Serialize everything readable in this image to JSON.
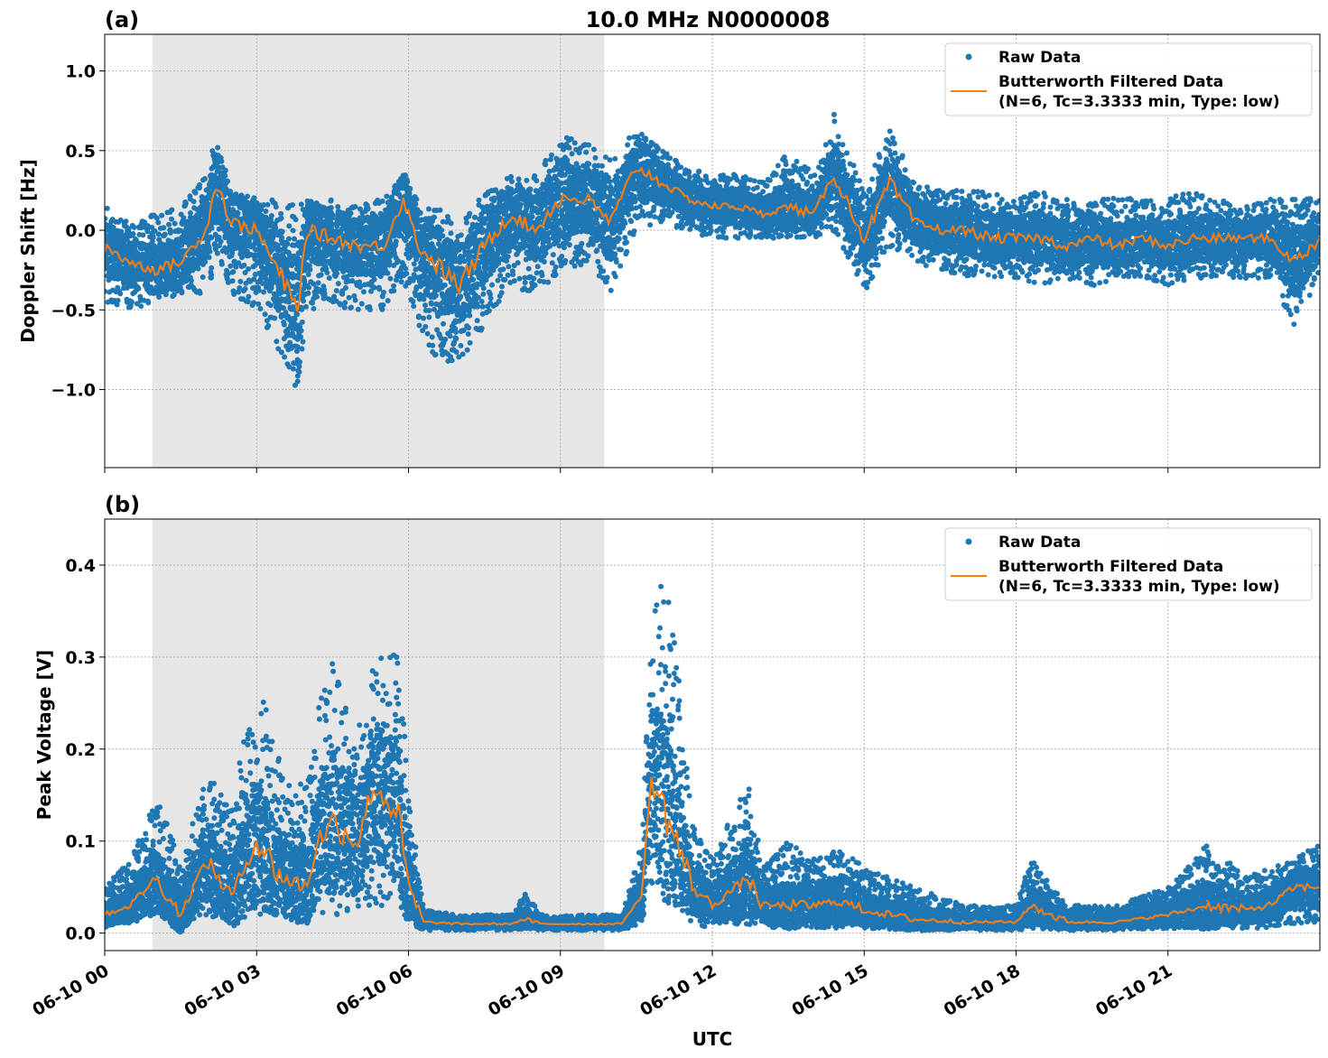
{
  "title": "10.0 MHz N0000008",
  "colors": {
    "raw": "#1f77b4",
    "filtered": "#ff7f0e",
    "shade": "#e6e6e6"
  },
  "chart_data": [
    {
      "type": "scatter+line",
      "panel_label": "(a)",
      "ylabel": "Doppler Shift [Hz]",
      "xlabel": "",
      "xlim_hours": [
        0,
        24
      ],
      "ylim": [
        -1.49,
        1.23
      ],
      "yticks": [
        1.0,
        0.5,
        0.0,
        -0.5,
        -1.0
      ],
      "ytick_labels": [
        "1.0",
        "0.5",
        "0.0",
        "−0.5",
        "−1.0"
      ],
      "grid": true,
      "legend_placement": "upper right",
      "shaded_interval_hours": [
        0.94,
        9.87
      ],
      "legend": {
        "raw": "Raw Data",
        "filtered_1": "Butterworth Filtered Data",
        "filtered_2": "(N=6, Tc=3.3333 min, Type: low)"
      },
      "x_hours": [
        0,
        0.5,
        1,
        1.5,
        2,
        2.2,
        2.5,
        3,
        3.5,
        3.8,
        4,
        4.5,
        5,
        5.5,
        5.9,
        6.2,
        6.5,
        7,
        7.5,
        8,
        8.5,
        9,
        9.5,
        10,
        10.5,
        11,
        11.5,
        12,
        12.5,
        13,
        13.5,
        14,
        14.4,
        15,
        15.5,
        16,
        16.5,
        17,
        17.5,
        18,
        18.5,
        19,
        19.5,
        20,
        20.5,
        21,
        21.5,
        22,
        22.5,
        23,
        23.5,
        24
      ],
      "filtered": [
        -0.1,
        -0.2,
        -0.25,
        -0.2,
        0.0,
        0.3,
        0.05,
        0.0,
        -0.3,
        -0.5,
        0.0,
        -0.05,
        -0.1,
        -0.1,
        0.2,
        -0.1,
        -0.2,
        -0.35,
        -0.1,
        0.1,
        0.0,
        0.2,
        0.2,
        0.05,
        0.4,
        0.3,
        0.2,
        0.15,
        0.15,
        0.1,
        0.15,
        0.1,
        0.35,
        -0.05,
        0.3,
        0.05,
        0.0,
        0.0,
        -0.05,
        -0.05,
        -0.05,
        -0.1,
        -0.05,
        -0.1,
        -0.05,
        -0.1,
        -0.05,
        -0.05,
        -0.05,
        -0.05,
        -0.2,
        -0.05
      ],
      "raw_min": [
        -0.45,
        -0.5,
        -0.45,
        -0.4,
        -0.4,
        -0.2,
        -0.4,
        -0.5,
        -0.8,
        -1.0,
        -0.5,
        -0.5,
        -0.5,
        -0.5,
        -0.3,
        -0.6,
        -0.8,
        -0.85,
        -0.6,
        -0.35,
        -0.4,
        -0.3,
        -0.2,
        -0.4,
        0.0,
        0.05,
        0.0,
        -0.05,
        -0.05,
        -0.05,
        -0.05,
        -0.05,
        0.0,
        -0.4,
        -0.1,
        -0.2,
        -0.25,
        -0.3,
        -0.3,
        -0.3,
        -0.35,
        -0.3,
        -0.35,
        -0.3,
        -0.3,
        -0.35,
        -0.3,
        -0.3,
        -0.3,
        -0.3,
        -0.6,
        -0.3
      ],
      "raw_max": [
        0.15,
        0.05,
        0.1,
        0.15,
        0.35,
        0.6,
        0.25,
        0.2,
        0.2,
        0.15,
        0.2,
        0.2,
        0.15,
        0.2,
        0.35,
        0.2,
        0.15,
        0.05,
        0.25,
        0.35,
        0.35,
        0.6,
        0.55,
        0.45,
        0.65,
        0.5,
        0.4,
        0.35,
        0.35,
        0.3,
        0.5,
        0.35,
        0.75,
        0.25,
        0.65,
        0.3,
        0.25,
        0.25,
        0.25,
        0.2,
        0.25,
        0.2,
        0.2,
        0.2,
        0.2,
        0.2,
        0.25,
        0.2,
        0.15,
        0.2,
        0.2,
        0.2
      ]
    },
    {
      "type": "scatter+line",
      "panel_label": "(b)",
      "ylabel": "Peak Voltage [V]",
      "xlabel": "UTC",
      "xlim_hours": [
        0,
        24
      ],
      "ylim": [
        -0.019,
        0.45
      ],
      "yticks": [
        0.0,
        0.1,
        0.2,
        0.3,
        0.4
      ],
      "ytick_labels": [
        "0.0",
        "0.1",
        "0.2",
        "0.3",
        "0.4"
      ],
      "xtick_hours": [
        0,
        3,
        6,
        9,
        12,
        15,
        18,
        21
      ],
      "xtick_labels": [
        "06-10 00",
        "06-10 03",
        "06-10 06",
        "06-10 09",
        "06-10 12",
        "06-10 15",
        "06-10 18",
        "06-10 21"
      ],
      "grid": true,
      "legend_placement": "upper right",
      "shaded_interval_hours": [
        0.94,
        9.87
      ],
      "legend": {
        "raw": "Raw Data",
        "filtered_1": "Butterworth Filtered Data",
        "filtered_2": "(N=6, Tc=3.3333 min, Type: low)"
      },
      "x_hours": [
        0,
        0.5,
        1,
        1.5,
        2,
        2.5,
        3,
        3.5,
        4,
        4.2,
        4.5,
        5,
        5.3,
        5.8,
        6,
        6.3,
        7,
        8,
        8.3,
        8.6,
        9,
        9.8,
        10.2,
        10.6,
        10.8,
        11,
        11.3,
        11.6,
        12,
        12.7,
        13,
        13.5,
        14,
        14.5,
        15,
        16,
        17,
        18,
        18.3,
        19,
        20,
        21,
        21.8,
        22.5,
        23,
        23.5,
        24
      ],
      "filtered": [
        0.02,
        0.03,
        0.06,
        0.02,
        0.08,
        0.04,
        0.1,
        0.06,
        0.05,
        0.1,
        0.12,
        0.1,
        0.16,
        0.13,
        0.05,
        0.012,
        0.01,
        0.01,
        0.015,
        0.01,
        0.01,
        0.01,
        0.01,
        0.04,
        0.17,
        0.14,
        0.1,
        0.05,
        0.03,
        0.06,
        0.03,
        0.03,
        0.03,
        0.035,
        0.025,
        0.015,
        0.012,
        0.012,
        0.03,
        0.012,
        0.012,
        0.02,
        0.03,
        0.025,
        0.03,
        0.05,
        0.05
      ],
      "raw_min": [
        0.005,
        0.01,
        0.02,
        0.005,
        0.02,
        0.01,
        0.02,
        0.02,
        0.01,
        0.02,
        0.02,
        0.02,
        0.03,
        0.03,
        0.01,
        0.003,
        0.003,
        0.003,
        0.005,
        0.003,
        0.003,
        0.003,
        0.003,
        0.01,
        0.05,
        0.05,
        0.03,
        0.01,
        0.005,
        0.01,
        0.005,
        0.005,
        0.005,
        0.005,
        0.005,
        0.003,
        0.003,
        0.003,
        0.005,
        0.003,
        0.003,
        0.005,
        0.005,
        0.005,
        0.005,
        0.01,
        0.01
      ],
      "raw_max": [
        0.05,
        0.08,
        0.15,
        0.08,
        0.18,
        0.14,
        0.28,
        0.18,
        0.16,
        0.24,
        0.3,
        0.22,
        0.3,
        0.31,
        0.15,
        0.025,
        0.02,
        0.02,
        0.045,
        0.02,
        0.02,
        0.02,
        0.02,
        0.1,
        0.33,
        0.42,
        0.3,
        0.12,
        0.08,
        0.17,
        0.07,
        0.1,
        0.08,
        0.1,
        0.07,
        0.05,
        0.03,
        0.03,
        0.08,
        0.03,
        0.03,
        0.05,
        0.1,
        0.06,
        0.07,
        0.08,
        0.1
      ]
    }
  ]
}
